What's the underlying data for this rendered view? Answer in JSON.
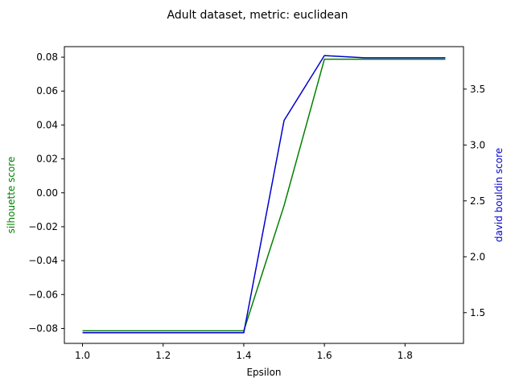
{
  "chart_data": {
    "type": "line",
    "title": "Adult dataset, metric: euclidean",
    "xlabel": "Epsilon",
    "ylabel_left": "silhouette score",
    "ylabel_right": "david bouldin score",
    "xlim": [
      0.955,
      1.945
    ],
    "ylim_left": [
      -0.0888,
      0.0862
    ],
    "ylim_right": [
      1.225,
      3.88
    ],
    "x_ticks": [
      1.0,
      1.2,
      1.4,
      1.6,
      1.8
    ],
    "x_tick_labels": [
      "1.0",
      "1.2",
      "1.4",
      "1.6",
      "1.8"
    ],
    "y_left_ticks": [
      -0.08,
      -0.06,
      -0.04,
      -0.02,
      0.0,
      0.02,
      0.04,
      0.06,
      0.08
    ],
    "y_left_tick_labels": [
      "−0.08",
      "−0.06",
      "−0.04",
      "−0.02",
      "0.00",
      "0.02",
      "0.04",
      "0.06",
      "0.08"
    ],
    "y_right_ticks": [
      1.5,
      2.0,
      2.5,
      3.0,
      3.5
    ],
    "y_right_tick_labels": [
      "1.5",
      "2.0",
      "2.5",
      "3.0",
      "3.5"
    ],
    "x": [
      1.0,
      1.1,
      1.2,
      1.3,
      1.4,
      1.5,
      1.6,
      1.7,
      1.8,
      1.9
    ],
    "series": [
      {
        "axis": "left",
        "color": "#008000",
        "values": [
          -0.0814,
          -0.0814,
          -0.0814,
          -0.0814,
          -0.0814,
          -0.0075,
          0.0788,
          0.0788,
          0.0788,
          0.0788
        ]
      },
      {
        "axis": "right",
        "color": "#0000cc",
        "values": [
          1.32,
          1.32,
          1.32,
          1.32,
          1.32,
          3.22,
          3.8,
          3.78,
          3.78,
          3.78
        ]
      }
    ],
    "grid": false,
    "label_colors": {
      "left": "#008000",
      "right": "#0000cc"
    }
  }
}
